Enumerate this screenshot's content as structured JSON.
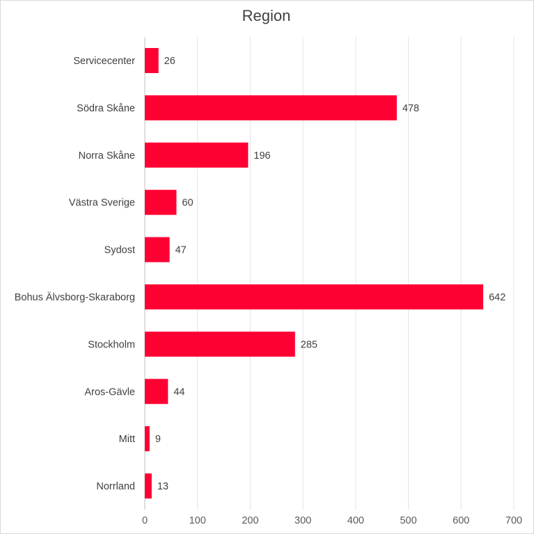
{
  "chart_data": {
    "type": "bar",
    "orientation": "horizontal",
    "title": "Region",
    "categories": [
      "Servicecenter",
      "Södra Skåne",
      "Norra Skåne",
      "Västra Sverige",
      "Sydost",
      "Bohus Älvsborg-Skaraborg",
      "Stockholm",
      "Aros-Gävle",
      "Mitt",
      "Norrland"
    ],
    "values": [
      26,
      478,
      196,
      60,
      47,
      642,
      285,
      44,
      9,
      13
    ],
    "xlim": [
      0,
      700
    ],
    "xticks": [
      0,
      100,
      200,
      300,
      400,
      500,
      600,
      700
    ],
    "grid": true,
    "bar_color": "#ff0033",
    "data_labels": true
  }
}
